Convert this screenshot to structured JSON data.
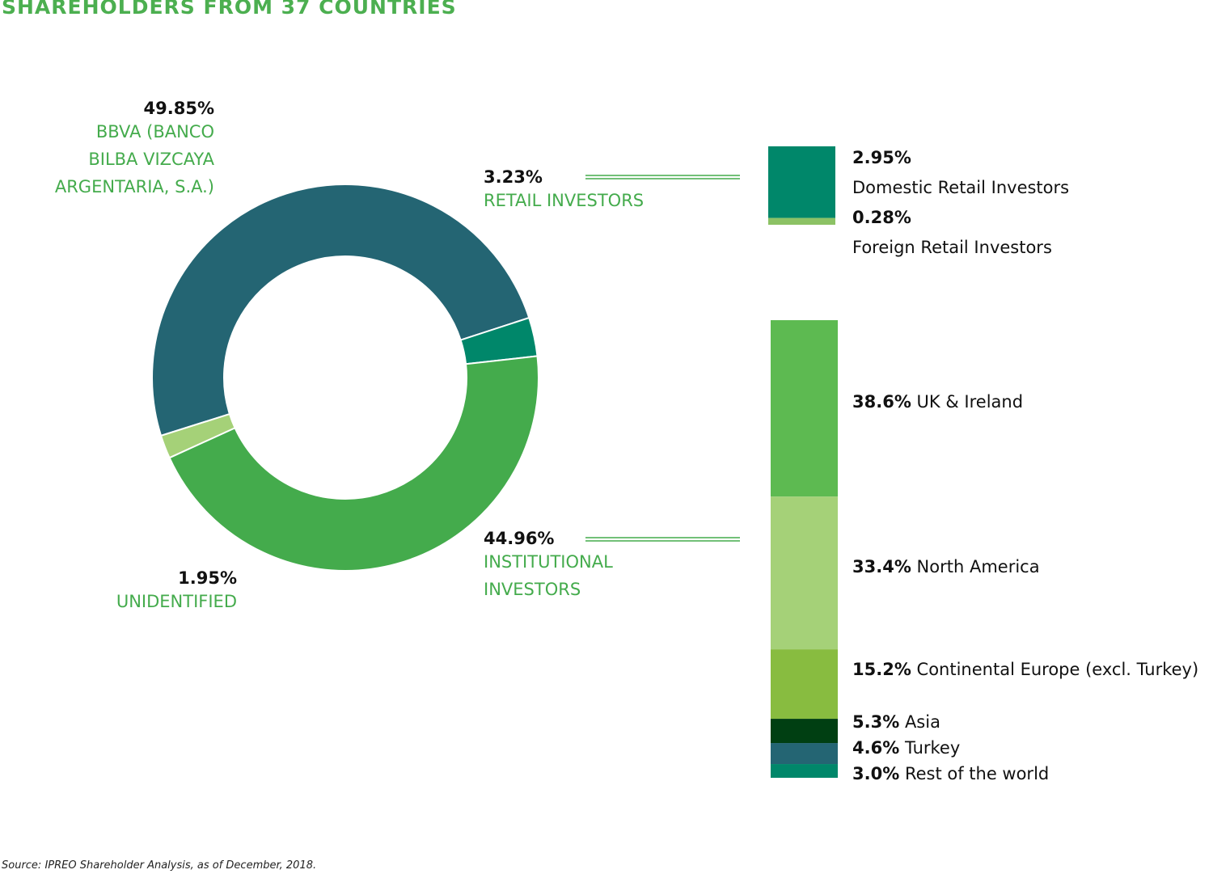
{
  "title": "SHAREHOLDERS FROM 37 COUNTRIES",
  "source": "Source: IPREO Shareholder Analysis, as of December, 2018.",
  "colors": {
    "title": "#4caf50",
    "bbva": "#246573",
    "retail": "#00876a",
    "institutional": "#44ab4c",
    "unidentified": "#a5d178",
    "label_green": "#44ab4c",
    "connector": "#44ab4c"
  },
  "chart_data": [
    {
      "type": "pie",
      "donut": true,
      "slices": [
        {
          "label_lines": [
            "BBVA (BANCO",
            "BILBA VIZCAYA",
            "ARGENTARIA, S.A.)"
          ],
          "value": 49.85,
          "value_label": "49.85%",
          "color": "#246573"
        },
        {
          "label_lines": [
            "RETAIL INVESTORS"
          ],
          "value": 3.23,
          "value_label": "3.23%",
          "color": "#00876a"
        },
        {
          "label_lines": [
            "INSTITUTIONAL",
            "INVESTORS"
          ],
          "value": 44.96,
          "value_label": "44.96%",
          "color": "#44ab4c"
        },
        {
          "label_lines": [
            "UNIDENTIFIED"
          ],
          "value": 1.95,
          "value_label": "1.95%",
          "color": "#a5d178"
        }
      ]
    },
    {
      "type": "bar",
      "stacked": true,
      "breakdown_of": "RETAIL INVESTORS",
      "segments": [
        {
          "label": "Domestic Retail Investors",
          "value": 2.95,
          "value_label": "2.95%",
          "color": "#00876a"
        },
        {
          "label": "Foreign Retail Investors",
          "value": 0.28,
          "value_label": "0.28%",
          "color": "#8cc265"
        }
      ]
    },
    {
      "type": "bar",
      "stacked": true,
      "breakdown_of": "INSTITUTIONAL INVESTORS",
      "segments": [
        {
          "label": "UK & Ireland",
          "value": 38.6,
          "value_label": "38.6%",
          "color": "#5dba51"
        },
        {
          "label": "North America",
          "value": 33.4,
          "value_label": "33.4%",
          "color": "#a5d178"
        },
        {
          "label": "Continental Europe (excl. Turkey)",
          "value": 15.2,
          "value_label": "15.2%",
          "color": "#88bc40"
        },
        {
          "label": "Asia",
          "value": 5.3,
          "value_label": "5.3%",
          "color": "#003f12"
        },
        {
          "label": "Turkey",
          "value": 4.6,
          "value_label": "4.6%",
          "color": "#246573"
        },
        {
          "label": "Rest of the world",
          "value": 3.0,
          "value_label": "3.0%",
          "color": "#00876a"
        }
      ]
    }
  ]
}
